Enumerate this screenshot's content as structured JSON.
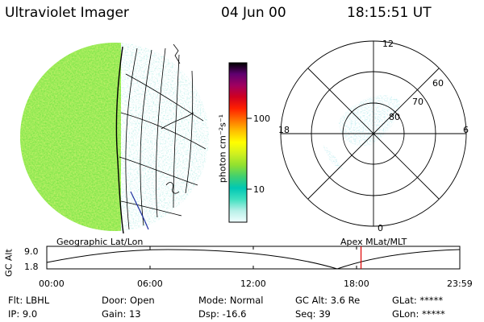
{
  "header": {
    "title": "Ultraviolet Imager",
    "date": "04 Jun 00",
    "time": "18:15:51 UT"
  },
  "colorbar": {
    "label": "photon cm⁻²s⁻¹",
    "ticks": [
      "100",
      "10"
    ],
    "stops": [
      "#f0ffff",
      "#b8f0e8",
      "#40e0c0",
      "#00c8b4",
      "#40d070",
      "#90e030",
      "#d0f020",
      "#ffff00",
      "#ffc000",
      "#ff7000",
      "#ff2000",
      "#d00020",
      "#a00060",
      "#600070",
      "#000000"
    ]
  },
  "polar_plot": {
    "mlt_labels": {
      "top": "12",
      "left": "18",
      "right": "6",
      "bottom": "0"
    },
    "lat_labels": [
      "60",
      "70",
      "80"
    ]
  },
  "timeline": {
    "left_caption": "Geographic Lat/Lon",
    "right_caption": "Apex MLat/MLT",
    "axis_label": "GC Alt",
    "y_ticks": [
      "9.0",
      "1.8"
    ],
    "x_ticks": [
      "00:00",
      "06:00",
      "12:00",
      "18:00",
      "23:59"
    ],
    "orbit_curve_color": "#000000",
    "current_time_marker_color": "#e00000",
    "current_time_hours": 18.26
  },
  "info": {
    "flt": "Flt: LBHL",
    "ip": "IP:  9.0",
    "door": "Door: Open",
    "gain": "Gain: 13",
    "mode": "Mode: Normal",
    "dsp": "Dsp:  -16.6",
    "gcalt": "GC Alt: 3.6 Re",
    "seq": "Seq: 39",
    "glat": "GLat: *****",
    "glon": "GLon: *****"
  }
}
